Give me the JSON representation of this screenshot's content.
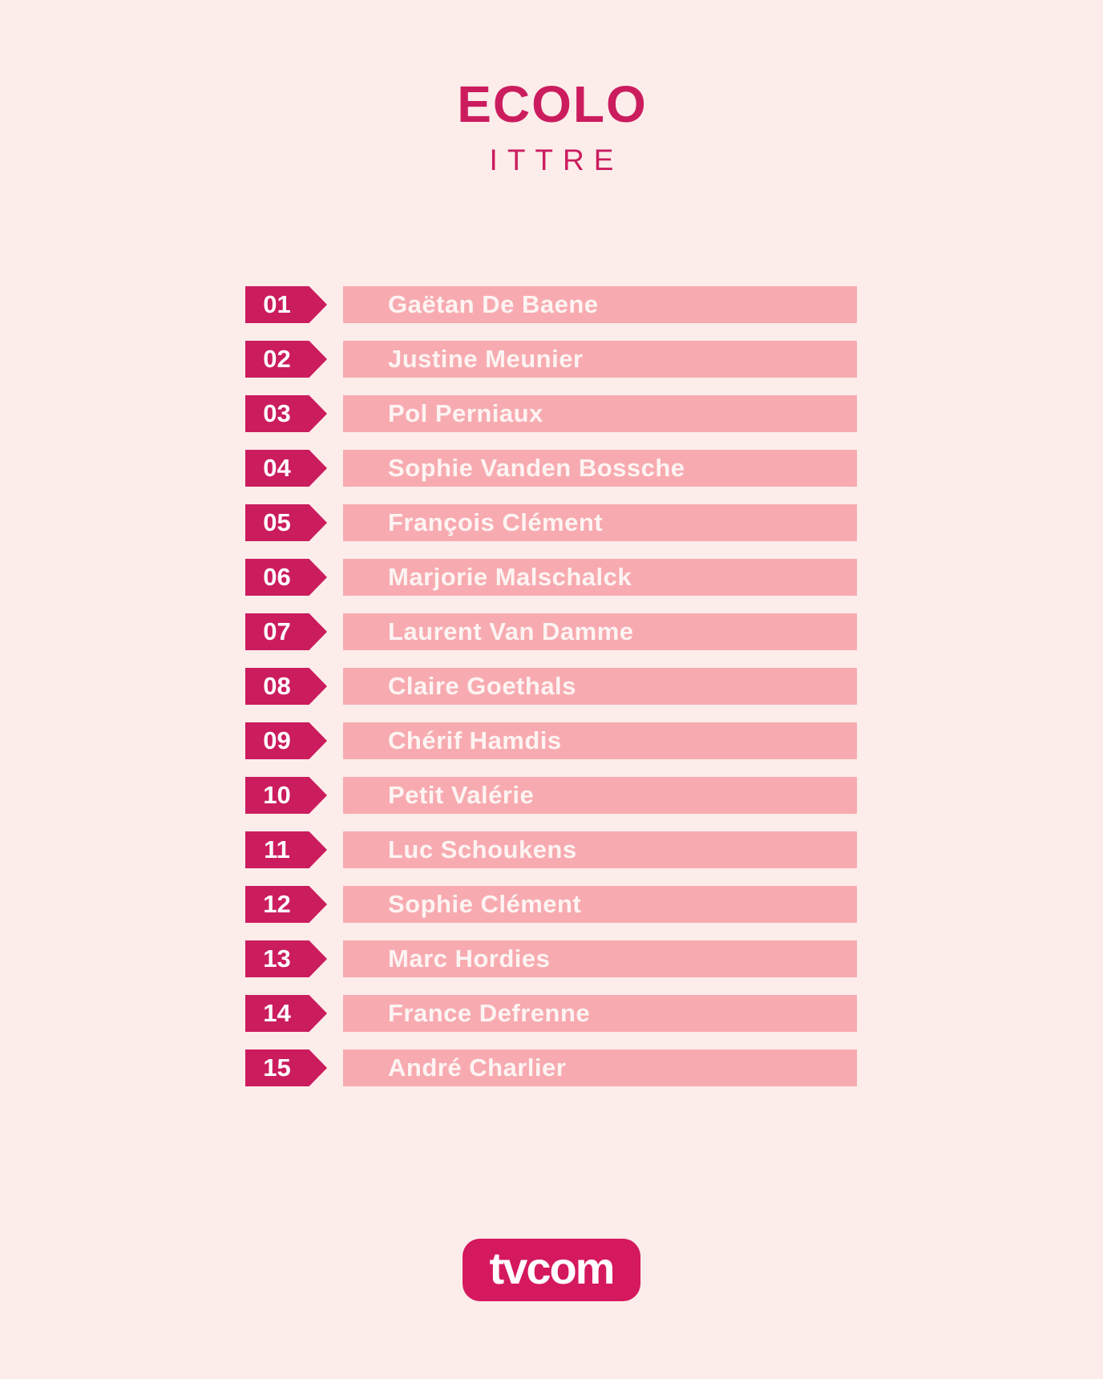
{
  "header": {
    "title": "ECOLO",
    "subtitle": "ITTRE"
  },
  "candidates": [
    {
      "number": "01",
      "name": "Gaëtan De Baene"
    },
    {
      "number": "02",
      "name": "Justine Meunier"
    },
    {
      "number": "03",
      "name": "Pol Perniaux"
    },
    {
      "number": "04",
      "name": "Sophie Vanden Bossche"
    },
    {
      "number": "05",
      "name": "François Clément"
    },
    {
      "number": "06",
      "name": "Marjorie Malschalck"
    },
    {
      "number": "07",
      "name": "Laurent Van Damme"
    },
    {
      "number": "08",
      "name": "Claire Goethals"
    },
    {
      "number": "09",
      "name": "Chérif Hamdis"
    },
    {
      "number": "10",
      "name": "Petit Valérie"
    },
    {
      "number": "11",
      "name": "Luc Schoukens"
    },
    {
      "number": "12",
      "name": "Sophie Clément"
    },
    {
      "number": "13",
      "name": "Marc Hordies"
    },
    {
      "number": "14",
      "name": "France Defrenne"
    },
    {
      "number": "15",
      "name": "André Charlier"
    }
  ],
  "footer": {
    "logo_text": "tvcom"
  },
  "colors": {
    "background": "#fcecea",
    "accent": "#cb1c5e",
    "logo_background": "#d5195f",
    "bar_background": "#f7abb0",
    "bar_text": "#fdf4f3",
    "badge_text": "#ffffff"
  }
}
